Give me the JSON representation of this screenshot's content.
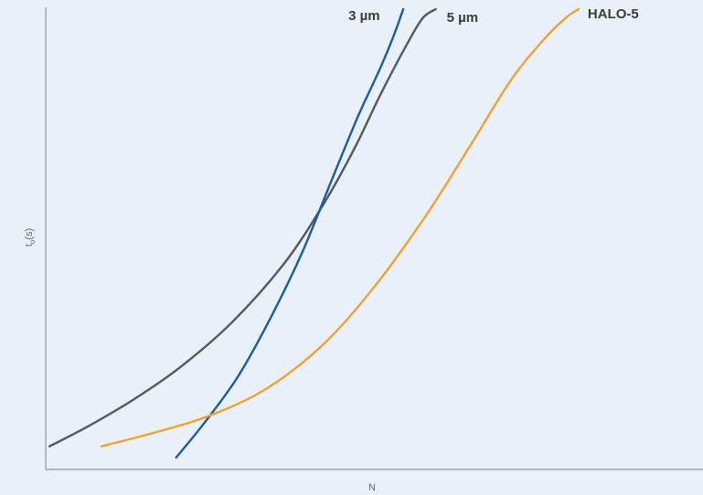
{
  "chart_data": {
    "type": "line",
    "title": "",
    "xlabel": "N",
    "ylabel": "t₀(s)",
    "ylabel_base": "t",
    "ylabel_subscript": "o",
    "ylabel_suffix": "(s)",
    "xlim": [
      0,
      100
    ],
    "ylim": [
      0,
      100
    ],
    "grid": false,
    "legend": "none",
    "series": [
      {
        "name": "5 µm",
        "color": "#58585a",
        "x": [
          2,
          8,
          15,
          22,
          30,
          38,
          44,
          49,
          53,
          57,
          59.5,
          61.5
        ],
        "y": [
          2.5,
          7,
          13,
          20,
          30,
          43,
          56,
          69,
          81,
          92,
          98,
          100
        ]
      },
      {
        "name": "3 µm",
        "color": "#1a5ba6",
        "x": [
          21.5,
          26,
          31,
          36,
          41,
          45.5,
          49.5,
          53,
          55,
          56.5
        ],
        "y": [
          0,
          8,
          18,
          31,
          46,
          62,
          76,
          87,
          94,
          100
        ]
      },
      {
        "name": "HALO-5",
        "color": "#f5a12d",
        "x": [
          10,
          18,
          26,
          35,
          44,
          52,
          60,
          67,
          73,
          78,
          81.5,
          83.5
        ],
        "y": [
          2.5,
          5.5,
          9,
          15,
          25,
          38,
          54,
          70,
          84,
          93,
          98,
          100
        ]
      }
    ]
  }
}
